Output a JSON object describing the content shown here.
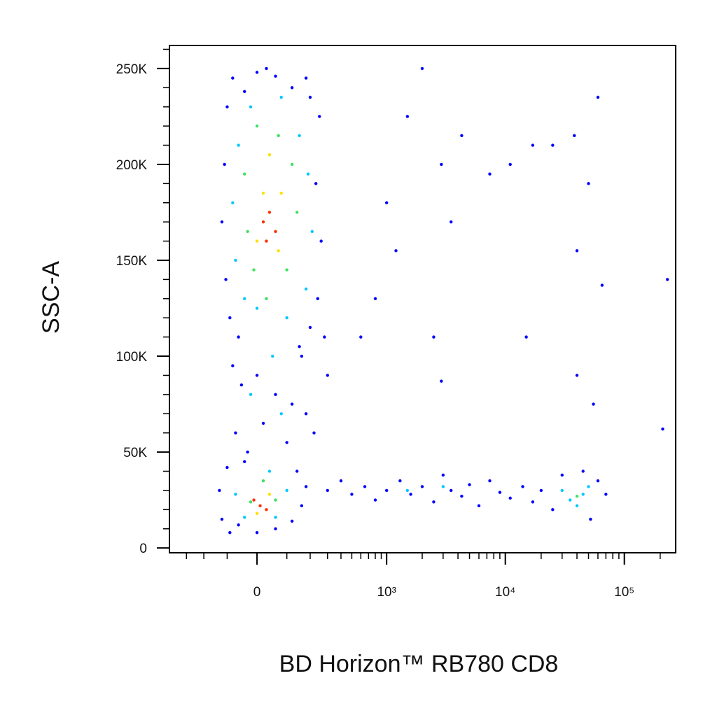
{
  "chart_data": {
    "type": "scatter",
    "x_label": "BD Horizon™ RB780 CD8",
    "y_label": "SSC-A",
    "xscale": "biexponential",
    "xlim": [
      -431,
      270000
    ],
    "xticks": [
      0,
      {
        "value": 1000,
        "label": "10³"
      },
      {
        "value": 10000,
        "label": "10⁴"
      },
      {
        "value": 100000,
        "label": "10⁵"
      }
    ],
    "xminorticks": [
      -300,
      -200,
      -100,
      100,
      200,
      300,
      400,
      500,
      600,
      700,
      800,
      900,
      2000,
      3000,
      4000,
      5000,
      6000,
      7000,
      8000,
      9000,
      20000,
      30000,
      40000,
      50000,
      60000,
      70000,
      80000,
      90000,
      200000
    ],
    "ylim": [
      -2500,
      262000
    ],
    "yticks": [
      0,
      {
        "value": 50000,
        "label": "50K"
      },
      {
        "value": 100000,
        "label": "100K"
      },
      {
        "value": 150000,
        "label": "150K"
      },
      {
        "value": 200000,
        "label": "200K"
      },
      {
        "value": 250000,
        "label": "250K"
      }
    ],
    "yminorticks": [
      10000,
      20000,
      30000,
      40000,
      60000,
      70000,
      80000,
      90000,
      110000,
      120000,
      130000,
      140000,
      160000,
      170000,
      180000,
      190000,
      210000,
      220000,
      230000,
      240000,
      260000
    ],
    "series": [
      {
        "color": "#0000ff",
        "x": [
          -100,
          -80,
          0,
          60,
          120,
          200,
          250,
          -110,
          -120,
          -105,
          -90,
          230,
          260,
          240,
          200,
          150,
          -60,
          30,
          180,
          -40,
          -80,
          -50,
          0,
          60,
          120,
          180,
          -70,
          20,
          100,
          220,
          300,
          -30,
          160,
          280,
          -130,
          -120,
          -90,
          -60,
          0,
          60,
          120,
          160,
          180,
          140,
          -100,
          -40,
          300,
          400,
          500,
          650,
          800,
          1000,
          1300,
          1600,
          2000,
          2500,
          3000,
          3500,
          4300,
          5000,
          6000,
          7400,
          9000,
          11000,
          14000,
          17000,
          20000,
          25000,
          52000,
          60000,
          70000,
          45000,
          30000,
          1500,
          2900,
          1000,
          4300,
          7400,
          17000,
          25000,
          38000,
          50000,
          40000,
          3500,
          1200,
          800,
          2500,
          15000,
          40000,
          55000,
          2900,
          230000,
          210000,
          60000,
          65000,
          600,
          2000,
          11000
        ],
        "y": [
          230000,
          245000,
          248000,
          246000,
          240000,
          235000,
          225000,
          200000,
          170000,
          140000,
          120000,
          190000,
          160000,
          130000,
          115000,
          105000,
          110000,
          250000,
          245000,
          238000,
          95000,
          85000,
          90000,
          80000,
          75000,
          70000,
          60000,
          65000,
          55000,
          60000,
          90000,
          50000,
          100000,
          110000,
          30000,
          15000,
          8000,
          12000,
          8000,
          10000,
          14000,
          22000,
          32000,
          40000,
          42000,
          45000,
          30000,
          35000,
          28000,
          32000,
          25000,
          30000,
          35000,
          28000,
          32000,
          24000,
          38000,
          30000,
          27000,
          33000,
          22000,
          35000,
          29000,
          26000,
          32000,
          24000,
          30000,
          20000,
          15000,
          35000,
          28000,
          40000,
          38000,
          225000,
          200000,
          180000,
          215000,
          195000,
          210000,
          210000,
          215000,
          190000,
          155000,
          170000,
          155000,
          130000,
          110000,
          110000,
          90000,
          75000,
          87000,
          140000,
          62000,
          235000,
          137000,
          110000,
          250000,
          200000
        ]
      },
      {
        "color": "#00c8ff",
        "x": [
          -20,
          80,
          150,
          -60,
          190,
          -80,
          210,
          -70,
          180,
          0,
          100,
          -40,
          50,
          -20,
          80,
          -70,
          100,
          40,
          -40,
          60,
          30000,
          40000,
          50000,
          35000,
          45000,
          1500,
          3000
        ],
        "y": [
          230000,
          235000,
          215000,
          210000,
          195000,
          180000,
          165000,
          150000,
          135000,
          125000,
          120000,
          130000,
          100000,
          80000,
          70000,
          28000,
          30000,
          40000,
          16000,
          16000,
          30000,
          22000,
          32000,
          25000,
          28000,
          30000,
          32000
        ]
      },
      {
        "color": "#40e060",
        "x": [
          0,
          70,
          -40,
          120,
          140,
          -30,
          100,
          -10,
          30,
          -20,
          60,
          20,
          40000
        ],
        "y": [
          220000,
          215000,
          195000,
          200000,
          175000,
          165000,
          145000,
          145000,
          130000,
          24000,
          25000,
          35000,
          27000
        ]
      },
      {
        "color": "#ffe000",
        "x": [
          40,
          20,
          80,
          0,
          70,
          0,
          40
        ],
        "y": [
          205000,
          185000,
          185000,
          160000,
          155000,
          18000,
          28000
        ]
      },
      {
        "color": "#ff3000",
        "x": [
          40,
          60,
          30,
          20,
          10,
          30,
          -10
        ],
        "y": [
          175000,
          165000,
          160000,
          170000,
          22000,
          20000,
          25000
        ]
      }
    ]
  }
}
